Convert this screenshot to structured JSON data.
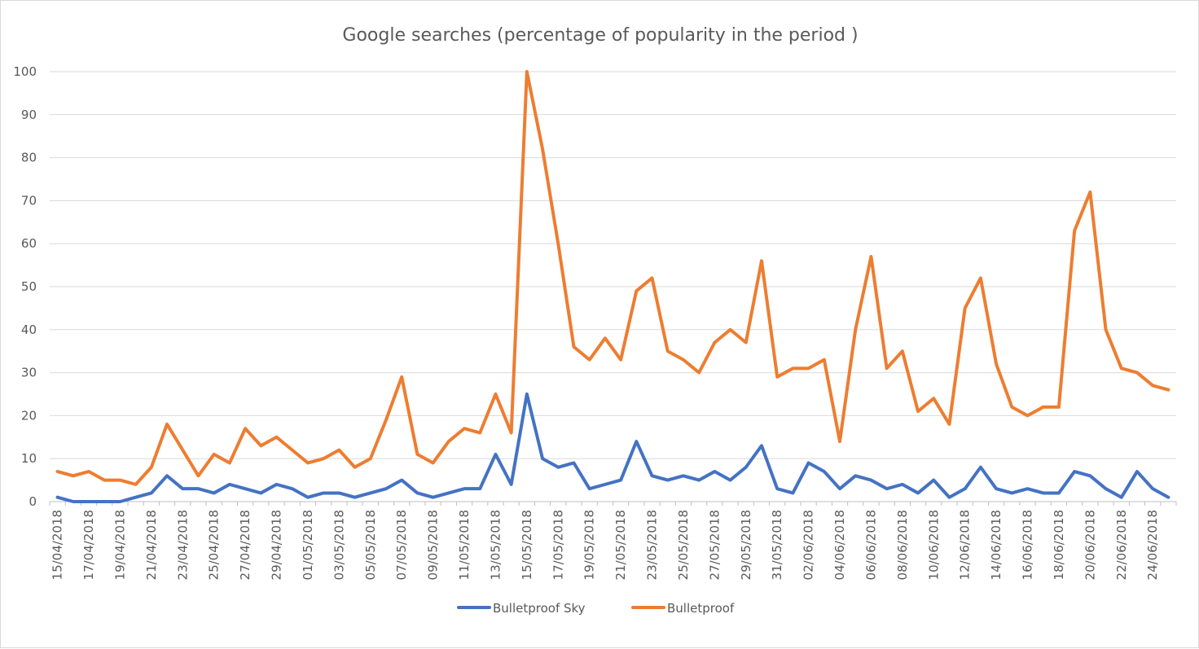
{
  "chart_data": {
    "type": "line",
    "title": "Google searches (percentage of popularity in the period )",
    "xlabel": "",
    "ylabel": "",
    "ylim": [
      0,
      100
    ],
    "yticks": [
      0,
      10,
      20,
      30,
      40,
      50,
      60,
      70,
      80,
      90,
      100
    ],
    "grid": "horizontal",
    "legend_position": "bottom",
    "x": [
      "15/04/2018",
      "16/04/2018",
      "17/04/2018",
      "18/04/2018",
      "19/04/2018",
      "20/04/2018",
      "21/04/2018",
      "22/04/2018",
      "23/04/2018",
      "24/04/2018",
      "25/04/2018",
      "26/04/2018",
      "27/04/2018",
      "28/04/2018",
      "29/04/2018",
      "30/04/2018",
      "01/05/2018",
      "02/05/2018",
      "03/05/2018",
      "04/05/2018",
      "05/05/2018",
      "06/05/2018",
      "07/05/2018",
      "08/05/2018",
      "09/05/2018",
      "10/05/2018",
      "11/05/2018",
      "12/05/2018",
      "13/05/2018",
      "14/05/2018",
      "15/05/2018",
      "16/05/2018",
      "17/05/2018",
      "18/05/2018",
      "19/05/2018",
      "20/05/2018",
      "21/05/2018",
      "22/05/2018",
      "23/05/2018",
      "24/05/2018",
      "25/05/2018",
      "26/05/2018",
      "27/05/2018",
      "28/05/2018",
      "29/05/2018",
      "30/05/2018",
      "31/05/2018",
      "01/06/2018",
      "02/06/2018",
      "03/06/2018",
      "04/06/2018",
      "05/06/2018",
      "06/06/2018",
      "07/06/2018",
      "08/06/2018",
      "09/06/2018",
      "10/06/2018",
      "11/06/2018",
      "12/06/2018",
      "13/06/2018",
      "14/06/2018",
      "15/06/2018",
      "16/06/2018",
      "17/06/2018",
      "18/06/2018",
      "19/06/2018",
      "20/06/2018",
      "21/06/2018",
      "22/06/2018",
      "23/06/2018",
      "24/06/2018",
      "25/06/2018"
    ],
    "tick_labels": [
      "15/04/2018",
      "17/04/2018",
      "19/04/2018",
      "21/04/2018",
      "23/04/2018",
      "25/04/2018",
      "27/04/2018",
      "29/04/2018",
      "01/05/2018",
      "03/05/2018",
      "05/05/2018",
      "07/05/2018",
      "09/05/2018",
      "11/05/2018",
      "13/05/2018",
      "15/05/2018",
      "17/05/2018",
      "19/05/2018",
      "21/05/2018",
      "23/05/2018",
      "25/05/2018",
      "27/05/2018",
      "29/05/2018",
      "31/05/2018",
      "02/06/2018",
      "04/06/2018",
      "06/06/2018",
      "08/06/2018",
      "10/06/2018",
      "12/06/2018",
      "14/06/2018",
      "16/06/2018",
      "18/06/2018",
      "20/06/2018",
      "22/06/2018",
      "24/06/2018"
    ],
    "series": [
      {
        "name": "Bulletproof Sky",
        "color": "#4472c4",
        "values": [
          1,
          0,
          0,
          0,
          0,
          1,
          2,
          6,
          3,
          3,
          2,
          4,
          3,
          2,
          4,
          3,
          1,
          2,
          2,
          1,
          2,
          3,
          5,
          2,
          1,
          2,
          3,
          3,
          11,
          4,
          25,
          10,
          8,
          9,
          3,
          4,
          5,
          14,
          6,
          5,
          6,
          5,
          7,
          5,
          8,
          13,
          3,
          2,
          9,
          7,
          3,
          6,
          5,
          3,
          4,
          2,
          5,
          1,
          3,
          8,
          3,
          2,
          3,
          2,
          2,
          7,
          6,
          3,
          1,
          7,
          3,
          1
        ]
      },
      {
        "name": "Bulletproof",
        "color": "#ed7d31",
        "values": [
          7,
          6,
          7,
          5,
          5,
          4,
          8,
          18,
          12,
          6,
          11,
          9,
          17,
          13,
          15,
          12,
          9,
          10,
          12,
          8,
          10,
          19,
          29,
          11,
          9,
          14,
          17,
          16,
          25,
          16,
          100,
          82,
          60,
          36,
          33,
          38,
          33,
          49,
          52,
          35,
          33,
          30,
          37,
          40,
          37,
          56,
          29,
          31,
          31,
          33,
          14,
          40,
          57,
          31,
          35,
          21,
          24,
          18,
          45,
          52,
          32,
          22,
          20,
          22,
          22,
          63,
          72,
          40,
          31,
          30,
          27,
          26
        ]
      }
    ]
  }
}
